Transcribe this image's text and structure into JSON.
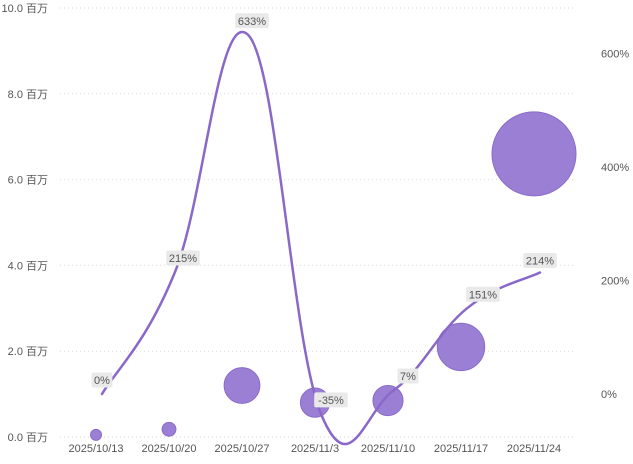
{
  "chart_data": {
    "type": "bubble-line-combo",
    "categories": [
      "2025/10/13",
      "2025/10/20",
      "2025/10/27",
      "2025/11/3",
      "2025/11/10",
      "2025/11/17",
      "2025/11/24"
    ],
    "left_axis": {
      "ticks": [
        "0.0 百万",
        "2.0 百万",
        "4.0 百万",
        "6.0 百万",
        "8.0 百万",
        "10.0 百万"
      ],
      "tick_values": [
        0,
        2,
        4,
        6,
        8,
        10
      ],
      "range": [
        0,
        10
      ]
    },
    "right_axis": {
      "ticks": [
        "0%",
        "200%",
        "400%",
        "600%"
      ],
      "tick_values": [
        0,
        200,
        400,
        600
      ],
      "range": [
        -75,
        675
      ]
    },
    "bubbles": {
      "values": [
        0.05,
        0.18,
        1.2,
        0.8,
        0.85,
        2.1,
        6.6
      ],
      "sizes": [
        0.05,
        0.18,
        1.2,
        0.8,
        0.85,
        2.1,
        6.6
      ],
      "color": "#9b7fd4",
      "edge_color": "#8a6cc9"
    },
    "line": {
      "values": [
        0,
        215,
        633,
        -35,
        7,
        151,
        214
      ],
      "labels": [
        "0%",
        "215%",
        "633%",
        "-35%",
        "7%",
        "151%",
        "214%"
      ],
      "color": "#8a68c8"
    },
    "grid": true,
    "legend": "none"
  }
}
